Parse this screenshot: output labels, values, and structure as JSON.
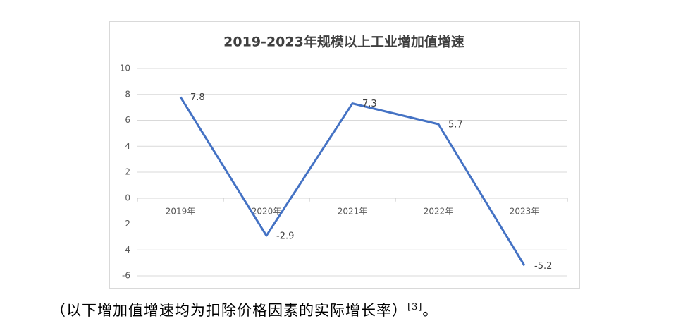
{
  "chart_data": {
    "type": "line",
    "title": "2019-2023年规模以上工业增加值增速",
    "categories": [
      "2019年",
      "2020年",
      "2021年",
      "2022年",
      "2023年"
    ],
    "values": [
      7.8,
      -2.9,
      7.3,
      5.7,
      -5.2
    ],
    "color": "#4472c4",
    "ylim": [
      -6,
      10
    ],
    "yticks": [
      -6,
      -4,
      -2,
      0,
      2,
      4,
      6,
      8,
      10
    ],
    "grid": true
  },
  "caption": {
    "text": "（以下增加值增速均为扣除价格因素的实际增长率）",
    "reference": "[3]",
    "end": "。"
  }
}
